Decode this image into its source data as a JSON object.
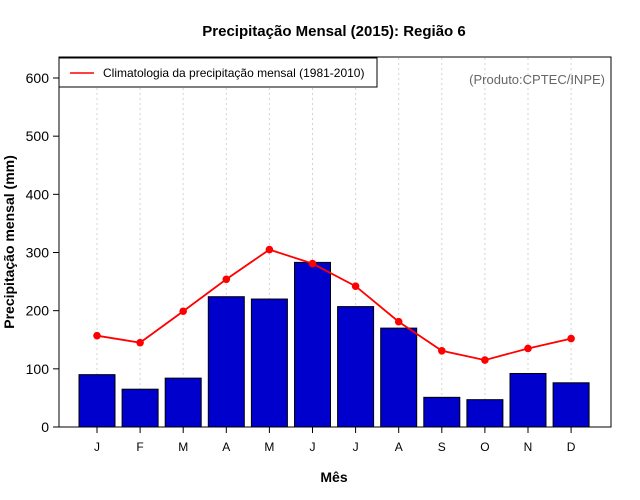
{
  "chart_data": {
    "type": "bar",
    "title": "Precipitação Mensal (2015): Região 6",
    "xlabel": "Mês",
    "ylabel": "Precipitação mensal (mm)",
    "ylim": [
      0,
      600
    ],
    "yticks": [
      "0",
      "100",
      "200",
      "300",
      "400",
      "500",
      "600"
    ],
    "categories": [
      "J",
      "F",
      "M",
      "A",
      "M",
      "J",
      "J",
      "A",
      "S",
      "O",
      "N",
      "D"
    ],
    "series": [
      {
        "name": "Precipitação mensal 2015",
        "type": "bar",
        "color": "#0000cd",
        "values": [
          90,
          65,
          84,
          224,
          220,
          283,
          207,
          170,
          51,
          47,
          92,
          76
        ]
      },
      {
        "name": "Climatologia da precipitação mensal (1981-2010)",
        "type": "line",
        "color": "#ff0000",
        "values": [
          157,
          145,
          199,
          254,
          305,
          281,
          242,
          181,
          131,
          115,
          135,
          152
        ]
      }
    ],
    "legend": {
      "label": "Climatologia da precipitação mensal (1981-2010)",
      "position": "top-left"
    },
    "annotation": "(Produto:CPTEC/INPE)",
    "grid": "vertical dotted"
  }
}
